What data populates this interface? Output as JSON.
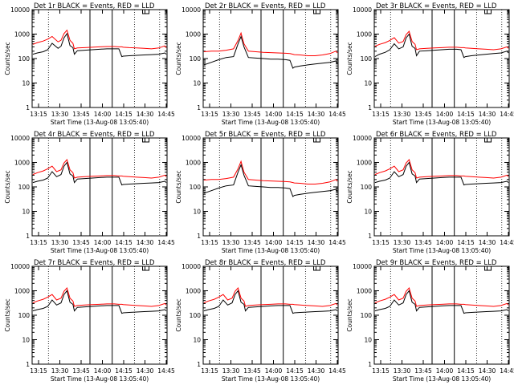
{
  "figure": {
    "background": "#ffffff"
  },
  "colors": {
    "events": "#000000",
    "lld": "#ff0000"
  },
  "axes": {
    "ylabel": "Counts/sec",
    "xlabel": "Start Time (13-Aug-08 13:05:40)",
    "y_ticks": [
      "10000",
      "1000",
      "100",
      "10",
      "1"
    ],
    "x_ticks": [
      "13:15",
      "13:30",
      "13:45",
      "14:00",
      "14:15",
      "14:30",
      "14:45"
    ]
  },
  "chart_data": [
    {
      "type": "line",
      "title": "Det 1r BLACK = Events, RED = LLD",
      "yscale": "log",
      "ylim": [
        1,
        10000
      ],
      "xlim_min": [
        9.5,
        100.5
      ],
      "x": [
        10,
        13,
        17,
        20,
        23,
        27,
        29,
        31,
        33,
        35,
        37,
        38,
        40,
        45,
        50,
        55,
        60,
        65,
        68,
        70,
        71,
        75,
        80,
        85,
        90,
        95,
        99,
        100
      ],
      "series": [
        {
          "name": "Events",
          "color": "#000000",
          "values": [
            150,
            170,
            190,
            230,
            420,
            260,
            320,
            700,
            1050,
            340,
            280,
            150,
            210,
            220,
            230,
            240,
            250,
            250,
            250,
            120,
            125,
            130,
            135,
            140,
            145,
            150,
            170,
            150
          ]
        },
        {
          "name": "LLD",
          "color": "#ff0000",
          "values": [
            380,
            450,
            520,
            620,
            800,
            480,
            560,
            1050,
            1450,
            560,
            420,
            250,
            270,
            280,
            290,
            300,
            310,
            310,
            300,
            300,
            290,
            280,
            270,
            260,
            250,
            270,
            330,
            280
          ]
        }
      ]
    },
    {
      "type": "line",
      "title": "Det 2r BLACK = Events, RED = LLD",
      "yscale": "log",
      "ylim": [
        1,
        10000
      ],
      "xlim_min": [
        9.5,
        100.5
      ],
      "x": [
        10,
        15,
        20,
        25,
        30,
        33,
        35,
        37,
        40,
        45,
        50,
        55,
        60,
        65,
        68,
        70,
        71,
        75,
        80,
        85,
        90,
        95,
        99,
        100
      ],
      "series": [
        {
          "name": "Events",
          "color": "#000000",
          "values": [
            55,
            70,
            90,
            110,
            120,
            400,
            800,
            300,
            110,
            105,
            100,
            95,
            95,
            90,
            85,
            40,
            45,
            50,
            55,
            60,
            65,
            70,
            80,
            60
          ]
        },
        {
          "name": "LLD",
          "color": "#ff0000",
          "values": [
            190,
            200,
            200,
            220,
            250,
            550,
            1100,
            400,
            200,
            190,
            180,
            175,
            170,
            165,
            160,
            150,
            145,
            140,
            130,
            130,
            140,
            160,
            200,
            170
          ]
        }
      ]
    },
    {
      "type": "line",
      "title": "Det 3r BLACK = Events, RED = LLD",
      "yscale": "log",
      "ylim": [
        1,
        10000
      ],
      "xlim_min": [
        9.5,
        100.5
      ],
      "x": [
        10,
        13,
        17,
        20,
        23,
        26,
        29,
        31,
        33,
        35,
        37,
        38,
        40,
        45,
        50,
        55,
        60,
        65,
        68,
        70,
        71,
        75,
        80,
        85,
        90,
        95,
        99,
        100
      ],
      "series": [
        {
          "name": "Events",
          "color": "#000000",
          "values": [
            120,
            150,
            180,
            230,
            400,
            250,
            300,
            700,
            1000,
            320,
            260,
            130,
            200,
            210,
            220,
            230,
            240,
            240,
            230,
            110,
            120,
            130,
            140,
            150,
            160,
            170,
            200,
            170
          ]
        },
        {
          "name": "LLD",
          "color": "#ff0000",
          "values": [
            320,
            380,
            450,
            550,
            720,
            430,
            500,
            950,
            1300,
            500,
            380,
            230,
            250,
            260,
            270,
            280,
            290,
            290,
            280,
            280,
            270,
            260,
            250,
            240,
            230,
            250,
            300,
            260
          ]
        }
      ]
    },
    {
      "type": "line",
      "title": "Det 4r BLACK = Events, RED = LLD",
      "yscale": "log",
      "ylim": [
        1,
        10000
      ],
      "xlim_min": [
        9.5,
        100.5
      ],
      "x": [
        10,
        13,
        17,
        20,
        23,
        26,
        29,
        31,
        33,
        35,
        37,
        38,
        40,
        45,
        50,
        55,
        60,
        65,
        68,
        70,
        71,
        75,
        80,
        85,
        90,
        95,
        99,
        100
      ],
      "series": [
        {
          "name": "Events",
          "color": "#000000",
          "values": [
            150,
            170,
            190,
            230,
            420,
            260,
            320,
            700,
            1000,
            340,
            280,
            150,
            210,
            220,
            230,
            240,
            250,
            250,
            250,
            120,
            125,
            130,
            135,
            140,
            145,
            150,
            170,
            150
          ]
        },
        {
          "name": "LLD",
          "color": "#ff0000",
          "values": [
            320,
            380,
            450,
            550,
            700,
            420,
            500,
            950,
            1300,
            500,
            380,
            230,
            250,
            260,
            270,
            280,
            290,
            290,
            280,
            280,
            270,
            260,
            250,
            240,
            230,
            250,
            300,
            260
          ]
        }
      ]
    },
    {
      "type": "line",
      "title": "Det 5r BLACK = Events, RED = LLD",
      "yscale": "log",
      "ylim": [
        1,
        10000
      ],
      "xlim_min": [
        9.5,
        100.5
      ],
      "x": [
        10,
        15,
        20,
        25,
        30,
        33,
        35,
        37,
        40,
        45,
        50,
        55,
        60,
        65,
        68,
        70,
        71,
        75,
        80,
        85,
        90,
        95,
        99,
        100
      ],
      "series": [
        {
          "name": "Events",
          "color": "#000000",
          "values": [
            55,
            70,
            90,
            110,
            120,
            400,
            800,
            300,
            110,
            105,
            100,
            95,
            95,
            90,
            85,
            40,
            45,
            50,
            55,
            60,
            65,
            70,
            80,
            60
          ]
        },
        {
          "name": "LLD",
          "color": "#ff0000",
          "values": [
            190,
            200,
            200,
            220,
            250,
            550,
            1100,
            400,
            200,
            190,
            180,
            175,
            170,
            165,
            160,
            150,
            145,
            140,
            130,
            130,
            140,
            160,
            200,
            170
          ]
        }
      ]
    },
    {
      "type": "line",
      "title": "Det 6r BLACK = Events, RED = LLD",
      "yscale": "log",
      "ylim": [
        1,
        10000
      ],
      "xlim_min": [
        9.5,
        100.5
      ],
      "x": [
        10,
        13,
        17,
        20,
        23,
        26,
        29,
        31,
        33,
        35,
        37,
        38,
        40,
        45,
        50,
        55,
        60,
        65,
        68,
        70,
        71,
        75,
        80,
        85,
        90,
        95,
        99,
        100
      ],
      "series": [
        {
          "name": "Events",
          "color": "#000000",
          "values": [
            150,
            170,
            190,
            230,
            420,
            260,
            320,
            700,
            1000,
            340,
            280,
            150,
            210,
            220,
            230,
            240,
            250,
            250,
            250,
            120,
            125,
            130,
            135,
            140,
            145,
            150,
            170,
            150
          ]
        },
        {
          "name": "LLD",
          "color": "#ff0000",
          "values": [
            320,
            380,
            450,
            550,
            700,
            420,
            500,
            950,
            1300,
            500,
            380,
            230,
            250,
            260,
            270,
            280,
            290,
            290,
            280,
            280,
            270,
            260,
            250,
            240,
            230,
            250,
            300,
            260
          ]
        }
      ]
    },
    {
      "type": "line",
      "title": "Det 7r BLACK = Events, RED = LLD",
      "yscale": "log",
      "ylim": [
        1,
        10000
      ],
      "xlim_min": [
        9.5,
        100.5
      ],
      "x": [
        10,
        13,
        17,
        20,
        23,
        26,
        29,
        31,
        33,
        35,
        37,
        38,
        40,
        45,
        50,
        55,
        60,
        65,
        68,
        70,
        71,
        75,
        80,
        85,
        90,
        95,
        99,
        100
      ],
      "series": [
        {
          "name": "Events",
          "color": "#000000",
          "values": [
            150,
            170,
            190,
            230,
            420,
            260,
            320,
            700,
            1000,
            340,
            280,
            150,
            210,
            220,
            230,
            240,
            250,
            250,
            250,
            120,
            125,
            130,
            135,
            140,
            145,
            150,
            170,
            150
          ]
        },
        {
          "name": "LLD",
          "color": "#ff0000",
          "values": [
            320,
            380,
            450,
            550,
            700,
            420,
            500,
            950,
            1300,
            500,
            380,
            230,
            250,
            260,
            270,
            280,
            290,
            290,
            280,
            280,
            270,
            260,
            250,
            240,
            230,
            250,
            300,
            260
          ]
        }
      ]
    },
    {
      "type": "line",
      "title": "Det 8r BLACK = Events, RED = LLD",
      "yscale": "log",
      "ylim": [
        1,
        10000
      ],
      "xlim_min": [
        9.5,
        100.5
      ],
      "x": [
        10,
        13,
        17,
        20,
        23,
        26,
        29,
        31,
        33,
        35,
        37,
        38,
        40,
        45,
        50,
        55,
        60,
        65,
        68,
        70,
        71,
        75,
        80,
        85,
        90,
        95,
        99,
        100
      ],
      "series": [
        {
          "name": "Events",
          "color": "#000000",
          "values": [
            150,
            170,
            190,
            230,
            420,
            260,
            320,
            700,
            1000,
            340,
            280,
            150,
            210,
            220,
            230,
            240,
            250,
            250,
            250,
            120,
            125,
            130,
            135,
            140,
            145,
            150,
            170,
            150
          ]
        },
        {
          "name": "LLD",
          "color": "#ff0000",
          "values": [
            320,
            380,
            450,
            550,
            700,
            420,
            500,
            950,
            1300,
            500,
            380,
            230,
            250,
            260,
            270,
            280,
            290,
            290,
            280,
            280,
            270,
            260,
            250,
            240,
            230,
            250,
            300,
            260
          ]
        }
      ]
    },
    {
      "type": "line",
      "title": "Det 9r BLACK = Events, RED = LLD",
      "yscale": "log",
      "ylim": [
        1,
        10000
      ],
      "xlim_min": [
        9.5,
        100.5
      ],
      "x": [
        10,
        13,
        17,
        20,
        23,
        26,
        29,
        31,
        33,
        35,
        37,
        38,
        40,
        45,
        50,
        55,
        60,
        65,
        68,
        70,
        71,
        75,
        80,
        85,
        90,
        95,
        99,
        100
      ],
      "series": [
        {
          "name": "Events",
          "color": "#000000",
          "values": [
            150,
            170,
            190,
            230,
            420,
            260,
            320,
            700,
            1000,
            340,
            280,
            150,
            210,
            220,
            230,
            240,
            250,
            250,
            250,
            120,
            125,
            130,
            135,
            140,
            145,
            150,
            170,
            150
          ]
        },
        {
          "name": "LLD",
          "color": "#ff0000",
          "values": [
            320,
            380,
            450,
            550,
            700,
            420,
            500,
            950,
            1300,
            500,
            380,
            230,
            250,
            260,
            270,
            280,
            290,
            290,
            280,
            280,
            270,
            260,
            250,
            240,
            230,
            250,
            300,
            260
          ]
        }
      ]
    }
  ]
}
